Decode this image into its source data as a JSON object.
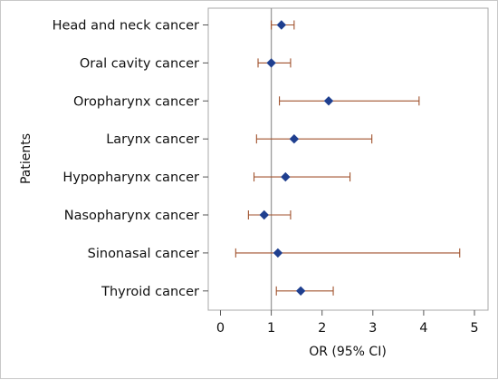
{
  "chart_data": {
    "type": "forest",
    "title": "",
    "xlabel": "OR (95% CI)",
    "ylabel": "Patients",
    "xlim": [
      0,
      5
    ],
    "xticks": [
      0,
      1,
      2,
      3,
      4,
      5
    ],
    "reference_line": 1,
    "grid": false,
    "marker_color": "#1f3f8f",
    "ci_color": "#a0522d",
    "reference_line_color": "#9a9a9a",
    "categories": [
      "Head and neck cancer",
      "Oral cavity cancer",
      "Oropharynx cancer",
      "Larynx cancer",
      "Hypopharynx cancer",
      "Nasopharynx cancer",
      "Sinonasal cancer",
      "Thyroid cancer"
    ],
    "or": [
      1.2,
      1.0,
      2.13,
      1.45,
      1.28,
      0.86,
      1.13,
      1.58
    ],
    "ci_low": [
      1.0,
      0.74,
      1.16,
      0.71,
      0.66,
      0.55,
      0.3,
      1.1
    ],
    "ci_high": [
      1.45,
      1.38,
      3.91,
      2.98,
      2.55,
      1.38,
      4.71,
      2.22
    ]
  }
}
